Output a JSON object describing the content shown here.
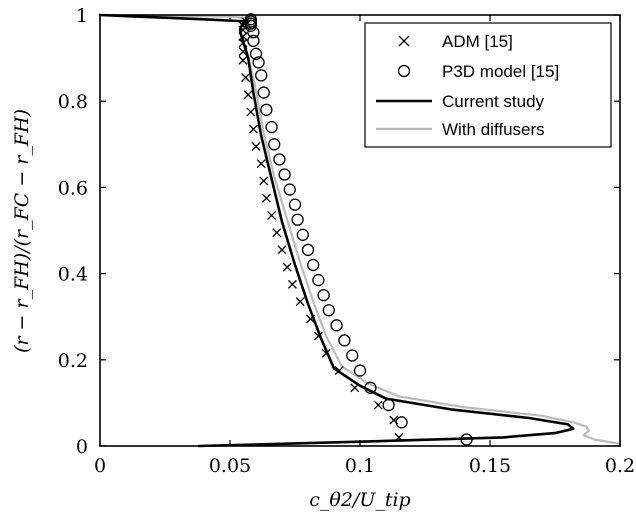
{
  "chart_data": {
    "type": "line",
    "xlabel": "c_θ2/U_tip",
    "ylabel": "(r − r_FH)/(r_FC − r_FH)",
    "xlim": [
      0,
      0.2
    ],
    "ylim": [
      0,
      1
    ],
    "xticks": [
      "0",
      "0.05",
      "0.1",
      "0.15",
      "0.2"
    ],
    "yticks": [
      "0",
      "0.2",
      "0.4",
      "0.6",
      "0.8",
      "1"
    ],
    "legend_position": "top-right",
    "series": [
      {
        "name": "ADM [15]",
        "marker": "x",
        "color": "#000000",
        "x": [
          0.115,
          0.113,
          0.107,
          0.098,
          0.092,
          0.087,
          0.084,
          0.081,
          0.077,
          0.074,
          0.072,
          0.07,
          0.068,
          0.066,
          0.064,
          0.063,
          0.062,
          0.06,
          0.059,
          0.058,
          0.057,
          0.056,
          0.055,
          0.055,
          0.055,
          0.055,
          0.055,
          0.055,
          0.056
        ],
        "y": [
          0.02,
          0.06,
          0.095,
          0.135,
          0.175,
          0.215,
          0.255,
          0.295,
          0.335,
          0.375,
          0.415,
          0.455,
          0.495,
          0.535,
          0.575,
          0.615,
          0.655,
          0.695,
          0.735,
          0.775,
          0.815,
          0.855,
          0.895,
          0.915,
          0.935,
          0.95,
          0.965,
          0.975,
          0.985
        ]
      },
      {
        "name": "P3D model [15]",
        "marker": "circle",
        "color": "#000000",
        "x": [
          0.141,
          0.116,
          0.111,
          0.104,
          0.1,
          0.097,
          0.094,
          0.091,
          0.088,
          0.086,
          0.084,
          0.082,
          0.08,
          0.078,
          0.076,
          0.075,
          0.073,
          0.071,
          0.069,
          0.067,
          0.066,
          0.064,
          0.063,
          0.062,
          0.061,
          0.06,
          0.059,
          0.059,
          0.058,
          0.058,
          0.058,
          0.058
        ],
        "y": [
          0.015,
          0.055,
          0.095,
          0.135,
          0.175,
          0.21,
          0.245,
          0.28,
          0.315,
          0.35,
          0.385,
          0.42,
          0.455,
          0.49,
          0.525,
          0.56,
          0.595,
          0.63,
          0.665,
          0.7,
          0.74,
          0.78,
          0.82,
          0.86,
          0.89,
          0.91,
          0.94,
          0.96,
          0.975,
          0.98,
          0.985,
          0.99
        ]
      },
      {
        "name": "Current study",
        "marker": "none",
        "color": "#000000",
        "x": [
          0.038,
          0.1,
          0.155,
          0.175,
          0.182,
          0.18,
          0.165,
          0.135,
          0.11,
          0.1,
          0.09,
          0.085,
          0.08,
          0.075,
          0.07,
          0.066,
          0.062,
          0.059,
          0.057,
          0.055,
          0.054,
          0.054,
          0.055,
          0.057,
          0.04,
          0.02,
          0.0
        ],
        "y": [
          0.0,
          0.01,
          0.02,
          0.03,
          0.04,
          0.05,
          0.065,
          0.085,
          0.11,
          0.14,
          0.18,
          0.25,
          0.33,
          0.42,
          0.52,
          0.62,
          0.72,
          0.82,
          0.9,
          0.94,
          0.96,
          0.97,
          0.98,
          0.985,
          0.99,
          0.995,
          1.0
        ]
      },
      {
        "name": "With diffusers",
        "marker": "none",
        "color": "#bbbbbb",
        "x": [
          0.2,
          0.19,
          0.186,
          0.188,
          0.187,
          0.182,
          0.17,
          0.14,
          0.115,
          0.103,
          0.093,
          0.087,
          0.082,
          0.077,
          0.072,
          0.067,
          0.063,
          0.06,
          0.057,
          0.055,
          0.054,
          0.054,
          0.056,
          0.058,
          0.058,
          0.057,
          0.05,
          0.03,
          0.005
        ],
        "y": [
          0.005,
          0.015,
          0.025,
          0.035,
          0.045,
          0.055,
          0.07,
          0.09,
          0.115,
          0.145,
          0.185,
          0.255,
          0.335,
          0.425,
          0.525,
          0.625,
          0.725,
          0.825,
          0.905,
          0.94,
          0.955,
          0.965,
          0.975,
          0.985,
          0.99,
          0.993,
          0.996,
          0.998,
          1.0
        ]
      }
    ]
  }
}
